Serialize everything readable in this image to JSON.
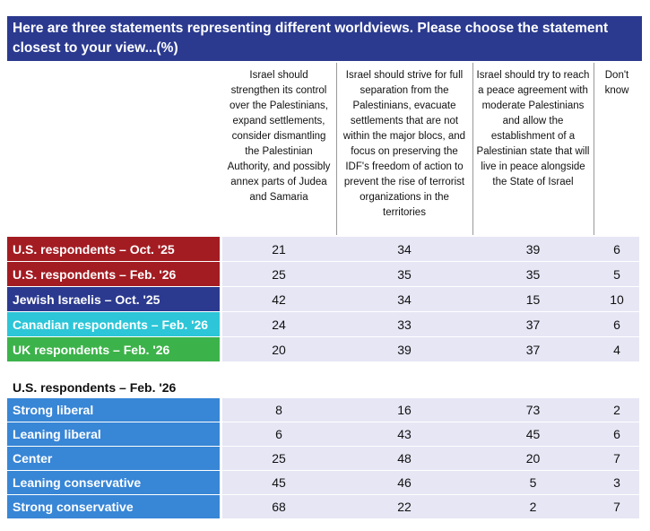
{
  "header": {
    "title": "Here are three statements representing different worldviews. Please choose the statement closest to your view...(%)"
  },
  "table": {
    "columns": [
      "Israel should strengthen its control over the Palestinians, expand settlements, consider dismantling the Palestinian Authority, and possibly annex parts of Judea and Samaria",
      "Israel should strive for full separation from the Palestinians, evacuate settlements that are not within the major blocs, and focus on preserving the IDF's freedom of action to prevent the rise of terrorist organizations in the territories",
      "Israel should try to reach a peace agreement with moderate Palestinians and allow the establishment of a Palestinian state that will live in peace alongside the State of Israel",
      "Don't know"
    ],
    "rows": [
      {
        "label": "U.S. respondents – Oct. '25",
        "color": "#a31c22",
        "values": [
          21,
          34,
          39,
          6
        ]
      },
      {
        "label": "U.S. respondents – Feb. '26",
        "color": "#a31c22",
        "values": [
          25,
          35,
          35,
          5
        ]
      },
      {
        "label": "Jewish Israelis – Oct. '25",
        "color": "#2b3a8f",
        "values": [
          42,
          34,
          15,
          10
        ]
      },
      {
        "label": "Canadian respondents – Feb. '26",
        "color": "#2cc6d8",
        "values": [
          24,
          33,
          37,
          6
        ]
      },
      {
        "label": "UK respondents  – Feb. '26",
        "color": "#3cb34a",
        "values": [
          20,
          39,
          37,
          4
        ]
      }
    ],
    "subheading": "U.S. respondents – Feb. '26",
    "subrows": [
      {
        "label": "Strong liberal",
        "color": "#3886d6",
        "values": [
          8,
          16,
          73,
          2
        ]
      },
      {
        "label": "Leaning liberal",
        "color": "#3886d6",
        "values": [
          6,
          43,
          45,
          6
        ]
      },
      {
        "label": "Center",
        "color": "#3886d6",
        "values": [
          25,
          48,
          20,
          7
        ]
      },
      {
        "label": "Leaning conservative",
        "color": "#3886d6",
        "values": [
          45,
          46,
          5,
          3
        ]
      },
      {
        "label": "Strong conservative",
        "color": "#3886d6",
        "values": [
          68,
          22,
          2,
          7
        ]
      }
    ]
  }
}
